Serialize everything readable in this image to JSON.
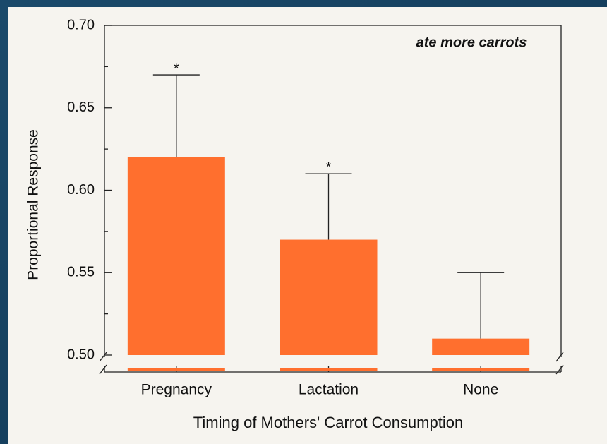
{
  "chart_data": {
    "type": "bar",
    "annotation": "ate more carrots",
    "xlabel": "Timing of Mothers' Carrot Consumption",
    "ylabel": "Proportional Response",
    "categories": [
      "Pregnancy",
      "Lactation",
      "None"
    ],
    "values": [
      0.62,
      0.57,
      0.51
    ],
    "errors": [
      0.05,
      0.04,
      0.04
    ],
    "markers": [
      "*",
      "*",
      null
    ],
    "color": "#ff6f2e",
    "ylim": [
      0.5,
      0.7
    ],
    "yticks": [
      {
        "value": 0.5,
        "label": "0.50"
      },
      {
        "value": 0.55,
        "label": "0.55"
      },
      {
        "value": 0.6,
        "label": "0.60"
      },
      {
        "value": 0.65,
        "label": "0.65"
      },
      {
        "value": 0.7,
        "label": "0.70"
      }
    ],
    "yticks_minor": [
      0.525,
      0.575,
      0.625,
      0.675
    ]
  }
}
